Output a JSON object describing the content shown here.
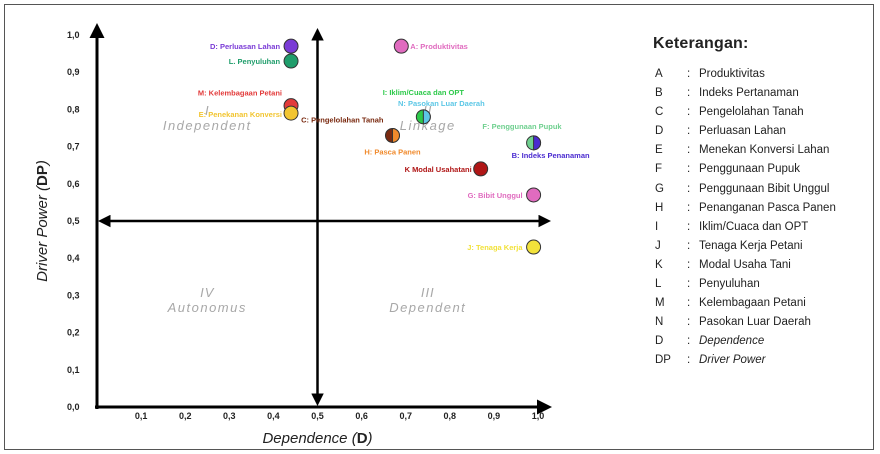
{
  "chart_data": {
    "type": "scatter",
    "xlabel": "Dependence (D)",
    "ylabel": "Driver Power (DP)",
    "xlim": [
      0.0,
      1.0
    ],
    "ylim": [
      0.0,
      1.0
    ],
    "x_ticks": [
      "0,1",
      "0,2",
      "0,3",
      "0,4",
      "0,5",
      "0,6",
      "0,7",
      "0,8",
      "0,9",
      "1,0"
    ],
    "y_ticks": [
      "0,0",
      "0,1",
      "0,2",
      "0,3",
      "0,4",
      "0,5",
      "0,6",
      "0,7",
      "0,8",
      "0,9",
      "1,0"
    ],
    "quadrants": [
      {
        "numeral": "I",
        "name": "Independent"
      },
      {
        "numeral": "II",
        "name": "Linkage"
      },
      {
        "numeral": "III",
        "name": "Dependent"
      },
      {
        "numeral": "IV",
        "name": "Autonomus"
      }
    ],
    "points": [
      {
        "label": "A: Produktivitas",
        "x": 0.69,
        "y": 0.97,
        "color": "#e06bbf"
      },
      {
        "label": "D: Perluasan Lahan",
        "x": 0.44,
        "y": 0.97,
        "color": "#7a3bd6"
      },
      {
        "label": "L. Penyuluhan",
        "x": 0.44,
        "y": 0.93,
        "color": "#1f9d6b"
      },
      {
        "label": "M: Kelembagaan Petani",
        "x": 0.44,
        "y": 0.81,
        "color": "#e23b3b"
      },
      {
        "label": "E: Penekanan Konversi",
        "x": 0.44,
        "y": 0.79,
        "color": "#f2c531"
      },
      {
        "label": "I: Iklim/Cuaca dan OPT",
        "x": 0.74,
        "y": 0.78,
        "color": "#2dc94a"
      },
      {
        "label": "N: Pasokan Luar Daerah",
        "x": 0.74,
        "y": 0.78,
        "color": "#5cc7e6"
      },
      {
        "label": "C: Pengelolahan Tanah",
        "x": 0.67,
        "y": 0.73,
        "color": "#7a2a10"
      },
      {
        "label": "H: Pasca Panen",
        "x": 0.67,
        "y": 0.73,
        "color": "#f08a2c"
      },
      {
        "label": "F: Penggunaan Pupuk",
        "x": 0.99,
        "y": 0.71,
        "color": "#6fd08f"
      },
      {
        "label": "B: Indeks Penanaman",
        "x": 0.99,
        "y": 0.71,
        "color": "#4a2bd0"
      },
      {
        "label": "K Modal Usahatani",
        "x": 0.87,
        "y": 0.64,
        "color": "#b01616"
      },
      {
        "label": "G: Bibit Unggul",
        "x": 0.99,
        "y": 0.57,
        "color": "#e06bbf"
      },
      {
        "label": "J: Tenaga Kerja",
        "x": 0.99,
        "y": 0.43,
        "color": "#f2e23b"
      }
    ]
  },
  "legend": {
    "title": "Keterangan:",
    "items": [
      {
        "key": "A",
        "desc": "Produktivitas"
      },
      {
        "key": "B",
        "desc": "Indeks Pertanaman"
      },
      {
        "key": "C",
        "desc": "Pengelolahan Tanah"
      },
      {
        "key": "D",
        "desc": "Perluasan Lahan"
      },
      {
        "key": "E",
        "desc": "Menekan Konversi Lahan"
      },
      {
        "key": "F",
        "desc": "Penggunaan Pupuk"
      },
      {
        "key": "G",
        "desc": "Penggunaan Bibit Unggul"
      },
      {
        "key": "H",
        "desc": "Penanganan Pasca Panen"
      },
      {
        "key": "I",
        "desc": "Iklim/Cuaca dan OPT"
      },
      {
        "key": "J",
        "desc": "Tenaga Kerja Petani"
      },
      {
        "key": "K",
        "desc": "Modal Usaha Tani"
      },
      {
        "key": "L",
        "desc": "Penyuluhan"
      },
      {
        "key": "M",
        "desc": "Kelembagaan Petani"
      },
      {
        "key": "N",
        "desc": "Pasokan Luar Daerah"
      },
      {
        "key": "D",
        "desc": "Dependence"
      },
      {
        "key": "DP",
        "desc": "Driver Power"
      }
    ],
    "separator": ":"
  }
}
